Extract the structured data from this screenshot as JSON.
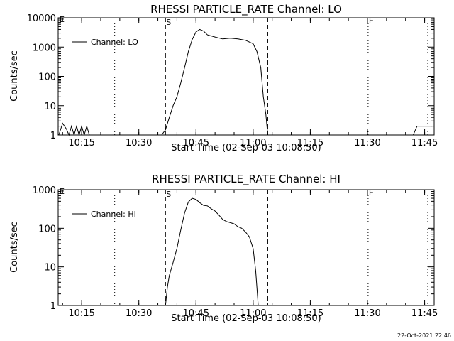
{
  "footer_timestamp": "22-Oct-2021 22:46",
  "chart_data": [
    {
      "type": "line",
      "title": "RHESSI PARTICLE_RATE Channel: LO",
      "xlabel": "Start Time (02-Sep-03 10:08:50)",
      "ylabel": "Counts/sec",
      "yscale": "log",
      "xlim": [
        "10:08:50",
        "11:47:30"
      ],
      "ylim": [
        1,
        10000
      ],
      "x_ticks": [
        "10:15",
        "10:30",
        "10:45",
        "11:00",
        "11:15",
        "11:30",
        "11:45"
      ],
      "y_ticks": [
        "1",
        "10",
        "100",
        "1000",
        "10000"
      ],
      "legend": {
        "position": "top-left",
        "entries": [
          "Channel: LO"
        ]
      },
      "markers": {
        "E_left": "E",
        "S": "S",
        "E_right": "E"
      },
      "series": [
        {
          "name": "Channel: LO",
          "x": [
            "10:09:00",
            "10:10:00",
            "10:11:00",
            "10:11:40",
            "10:12:20",
            "10:13:00",
            "10:13:40",
            "10:14:20",
            "10:15:00",
            "10:15:40",
            "10:16:20",
            "10:17:00",
            "10:36:00",
            "10:37:00",
            "10:38:00",
            "10:39:00",
            "10:40:00",
            "10:41:00",
            "10:42:00",
            "10:43:00",
            "10:44:00",
            "10:45:00",
            "10:46:00",
            "10:47:00",
            "10:48:00",
            "10:50:00",
            "10:52:00",
            "10:54:00",
            "10:56:00",
            "10:58:00",
            "11:00:00",
            "11:01:00",
            "11:02:00",
            "11:02:40",
            "11:03:20",
            "11:03:50",
            "11:42:00",
            "11:43:00",
            "11:47:00"
          ],
          "values": [
            1,
            2.5,
            1.6,
            1,
            2,
            1,
            2,
            1,
            2,
            1,
            2,
            1,
            1,
            1.5,
            4,
            10,
            20,
            60,
            200,
            700,
            1800,
            3300,
            4000,
            3500,
            2600,
            2200,
            1900,
            2000,
            1900,
            1700,
            1300,
            700,
            200,
            20,
            5,
            1,
            1,
            2,
            2
          ]
        }
      ]
    },
    {
      "type": "line",
      "title": "RHESSI PARTICLE_RATE Channel: HI",
      "xlabel": "Start Time (02-Sep-03 10:08:50)",
      "ylabel": "Counts/sec",
      "yscale": "log",
      "xlim": [
        "10:08:50",
        "11:47:30"
      ],
      "ylim": [
        1,
        1000
      ],
      "x_ticks": [
        "10:15",
        "10:30",
        "10:45",
        "11:00",
        "11:15",
        "11:30",
        "11:45"
      ],
      "y_ticks": [
        "1",
        "10",
        "100",
        "1000"
      ],
      "legend": {
        "position": "top-left",
        "entries": [
          "Channel: HI"
        ]
      },
      "markers": {
        "E_left": "E",
        "S": "S",
        "E_right": "E"
      },
      "series": [
        {
          "name": "Channel: HI",
          "x": [
            "10:37:00",
            "10:37:30",
            "10:38:00",
            "10:39:00",
            "10:40:00",
            "10:41:00",
            "10:42:00",
            "10:43:00",
            "10:44:00",
            "10:45:00",
            "10:46:00",
            "10:47:00",
            "10:48:00",
            "10:49:00",
            "10:50:00",
            "10:51:00",
            "10:52:00",
            "10:53:00",
            "10:54:00",
            "10:55:00",
            "10:56:00",
            "10:57:00",
            "10:58:00",
            "10:59:00",
            "11:00:00",
            "11:00:40",
            "11:01:20"
          ],
          "values": [
            1,
            3,
            6,
            13,
            30,
            90,
            250,
            480,
            600,
            560,
            460,
            390,
            380,
            320,
            280,
            220,
            170,
            150,
            140,
            130,
            110,
            100,
            80,
            60,
            30,
            8,
            1
          ]
        }
      ]
    }
  ]
}
